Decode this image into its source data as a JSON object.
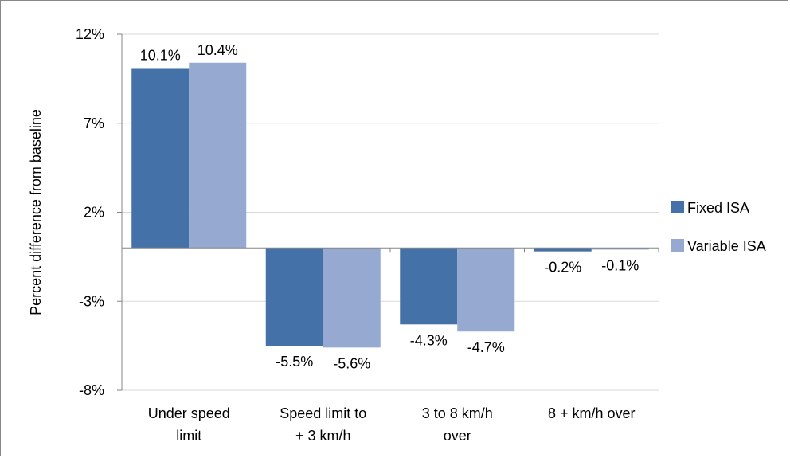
{
  "chart_data": {
    "type": "bar",
    "title": "",
    "ylabel": "Percent difference from baseline",
    "xlabel": "",
    "categories": [
      [
        "Under speed",
        "limit"
      ],
      [
        "Speed limit to",
        "+ 3 km/h"
      ],
      [
        "3 to 8 km/h",
        "over"
      ],
      [
        "8 + km/h over"
      ]
    ],
    "series": [
      {
        "name": "Fixed ISA",
        "color": "#4472a8",
        "values": [
          10.1,
          -5.5,
          -4.3,
          -0.2
        ],
        "labels": [
          "10.1%",
          "-5.5%",
          "-4.3%",
          "-0.2%"
        ]
      },
      {
        "name": "Variable ISA",
        "color": "#96a9d1",
        "values": [
          10.4,
          -5.6,
          -4.7,
          -0.1
        ],
        "labels": [
          "10.4%",
          "-5.6%",
          "-4.7%",
          "-0.1%"
        ]
      }
    ],
    "ylim": [
      -8,
      12
    ],
    "yticks": [
      12,
      7,
      2,
      -3,
      -8
    ],
    "ytick_labels": [
      "12%",
      "7%",
      "2%",
      "-3%",
      "-8%"
    ],
    "grid": true,
    "legend_position": "right"
  }
}
